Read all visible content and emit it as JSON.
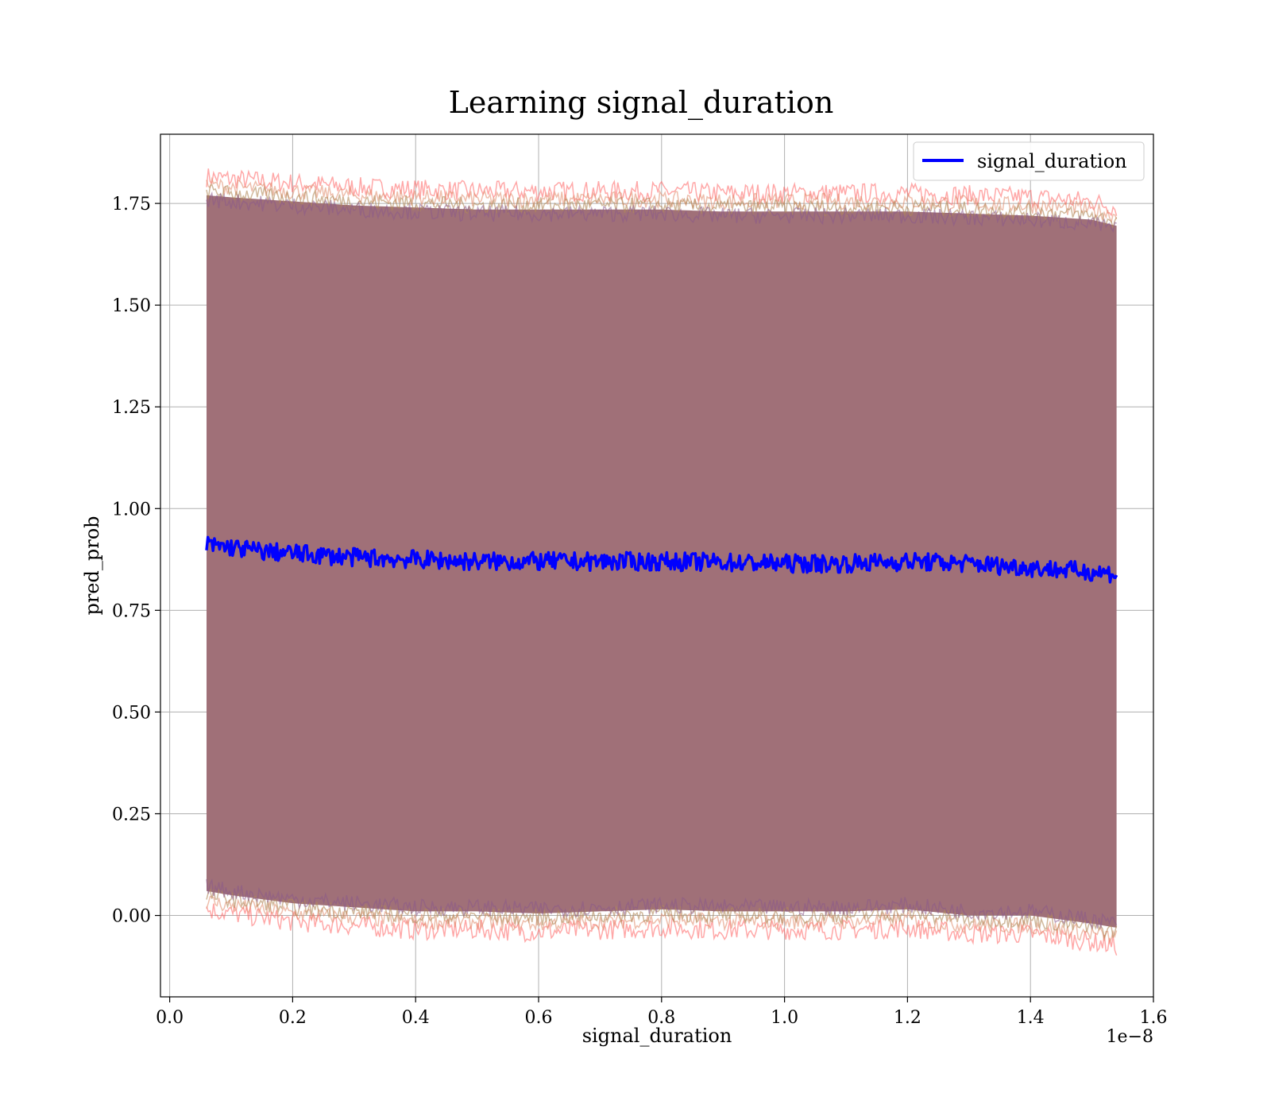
{
  "chart_data": {
    "type": "line",
    "title": "Learning signal_duration",
    "xlabel": "signal_duration",
    "ylabel": "pred_prob",
    "x_offset_label": "1e−8",
    "xlim": [
      -0.015,
      1.6
    ],
    "ylim": [
      -0.2,
      1.92
    ],
    "x_ticks": [
      0.0,
      0.2,
      0.4,
      0.6,
      0.8,
      1.0,
      1.2,
      1.4,
      1.6
    ],
    "x_tick_labels": [
      "0.0",
      "0.2",
      "0.4",
      "0.6",
      "0.8",
      "1.0",
      "1.2",
      "1.4",
      "1.6"
    ],
    "y_ticks": [
      0.0,
      0.25,
      0.5,
      0.75,
      1.0,
      1.25,
      1.5,
      1.75
    ],
    "y_tick_labels": [
      "0.00",
      "0.25",
      "0.50",
      "0.75",
      "1.00",
      "1.25",
      "1.50",
      "1.75"
    ],
    "grid": true,
    "legend_position": "top-right",
    "series": [
      {
        "name": "signal_duration",
        "color": "#0000ff",
        "x": [
          0.06,
          0.1,
          0.15,
          0.2,
          0.3,
          0.4,
          0.5,
          0.6,
          0.7,
          0.8,
          0.9,
          1.0,
          1.1,
          1.2,
          1.3,
          1.4,
          1.5,
          1.54
        ],
        "y": [
          0.91,
          0.905,
          0.895,
          0.89,
          0.88,
          0.875,
          0.87,
          0.87,
          0.87,
          0.87,
          0.868,
          0.865,
          0.865,
          0.87,
          0.865,
          0.855,
          0.845,
          0.84
        ]
      }
    ],
    "bands": [
      {
        "color": "#a07078",
        "x": [
          0.06,
          0.1,
          0.2,
          0.3,
          0.4,
          0.5,
          0.6,
          0.7,
          0.8,
          0.9,
          1.0,
          1.1,
          1.2,
          1.3,
          1.4,
          1.5,
          1.54
        ],
        "lower": [
          0.06,
          0.05,
          0.03,
          0.02,
          0.01,
          0.01,
          0.005,
          0.01,
          0.015,
          0.01,
          0.01,
          0.01,
          0.015,
          0.0,
          0.0,
          -0.02,
          -0.03
        ],
        "upper": [
          1.77,
          1.765,
          1.755,
          1.745,
          1.74,
          1.735,
          1.735,
          1.735,
          1.735,
          1.73,
          1.73,
          1.73,
          1.73,
          1.725,
          1.72,
          1.71,
          1.695
        ]
      }
    ]
  }
}
